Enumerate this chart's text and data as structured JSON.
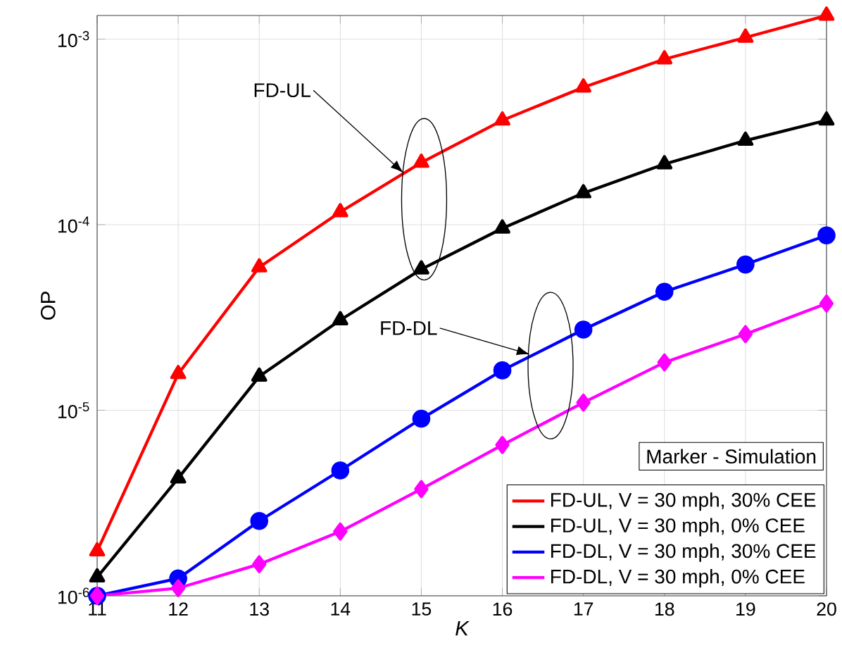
{
  "chart_data": {
    "type": "line",
    "xlabel": "K",
    "ylabel": "OP",
    "log": "y",
    "grid": true,
    "legend": "bottom right",
    "legend_title": "Marker - Simulation",
    "x": [
      11,
      12,
      13,
      14,
      15,
      16,
      17,
      18,
      19,
      20
    ],
    "xlim": [
      11,
      20
    ],
    "xticks": [
      11,
      12,
      13,
      14,
      15,
      16,
      17,
      18,
      19,
      20
    ],
    "ylim": [
      1e-06,
      0.00134
    ],
    "yticks": [
      {
        "value": 1e-06,
        "label": "10$^{-6}$"
      },
      {
        "value": 1e-05,
        "label": "10$^{-5}$"
      },
      {
        "value": 0.0001,
        "label": "10$^{-4}$"
      },
      {
        "value": 0.001,
        "label": "10$^{-3}$"
      }
    ],
    "series": [
      {
        "name": "FD-UL, V = 30 mph, 30% CEE",
        "color": "#ff0000",
        "marker": "triangle",
        "values": [
          1.74e-06,
          1.57e-05,
          5.9e-05,
          0.000117,
          0.000216,
          0.000365,
          0.00055,
          0.00078,
          0.00102,
          0.00134
        ]
      },
      {
        "name": "FD-UL, V = 30 mph, 0% CEE",
        "color": "#000000",
        "marker": "triangle",
        "values": [
          1.26e-06,
          4.3e-06,
          1.52e-05,
          3.06e-05,
          5.75e-05,
          9.55e-05,
          0.000148,
          0.000212,
          0.000284,
          0.000365
        ]
      },
      {
        "name": "FD-DL, V = 30 mph, 30% CEE",
        "color": "#0000ff",
        "marker": "circle",
        "values": [
          1e-06,
          1.24e-06,
          2.53e-06,
          4.74e-06,
          9e-06,
          1.64e-05,
          2.72e-05,
          4.35e-05,
          6.1e-05,
          8.75e-05
        ]
      },
      {
        "name": "FD-DL, V = 30 mph, 0% CEE",
        "color": "#ff00ff",
        "marker": "diamond",
        "values": [
          1e-06,
          1.1e-06,
          1.48e-06,
          2.22e-06,
          3.76e-06,
          6.5e-06,
          1.1e-05,
          1.81e-05,
          2.57e-05,
          3.76e-05
        ]
      }
    ],
    "annotations": [
      {
        "text": "FD-UL",
        "x": 14.78,
        "y": 0.00019
      },
      {
        "text": "FD-DL",
        "x": 16.34,
        "y": 2e-05
      }
    ]
  }
}
